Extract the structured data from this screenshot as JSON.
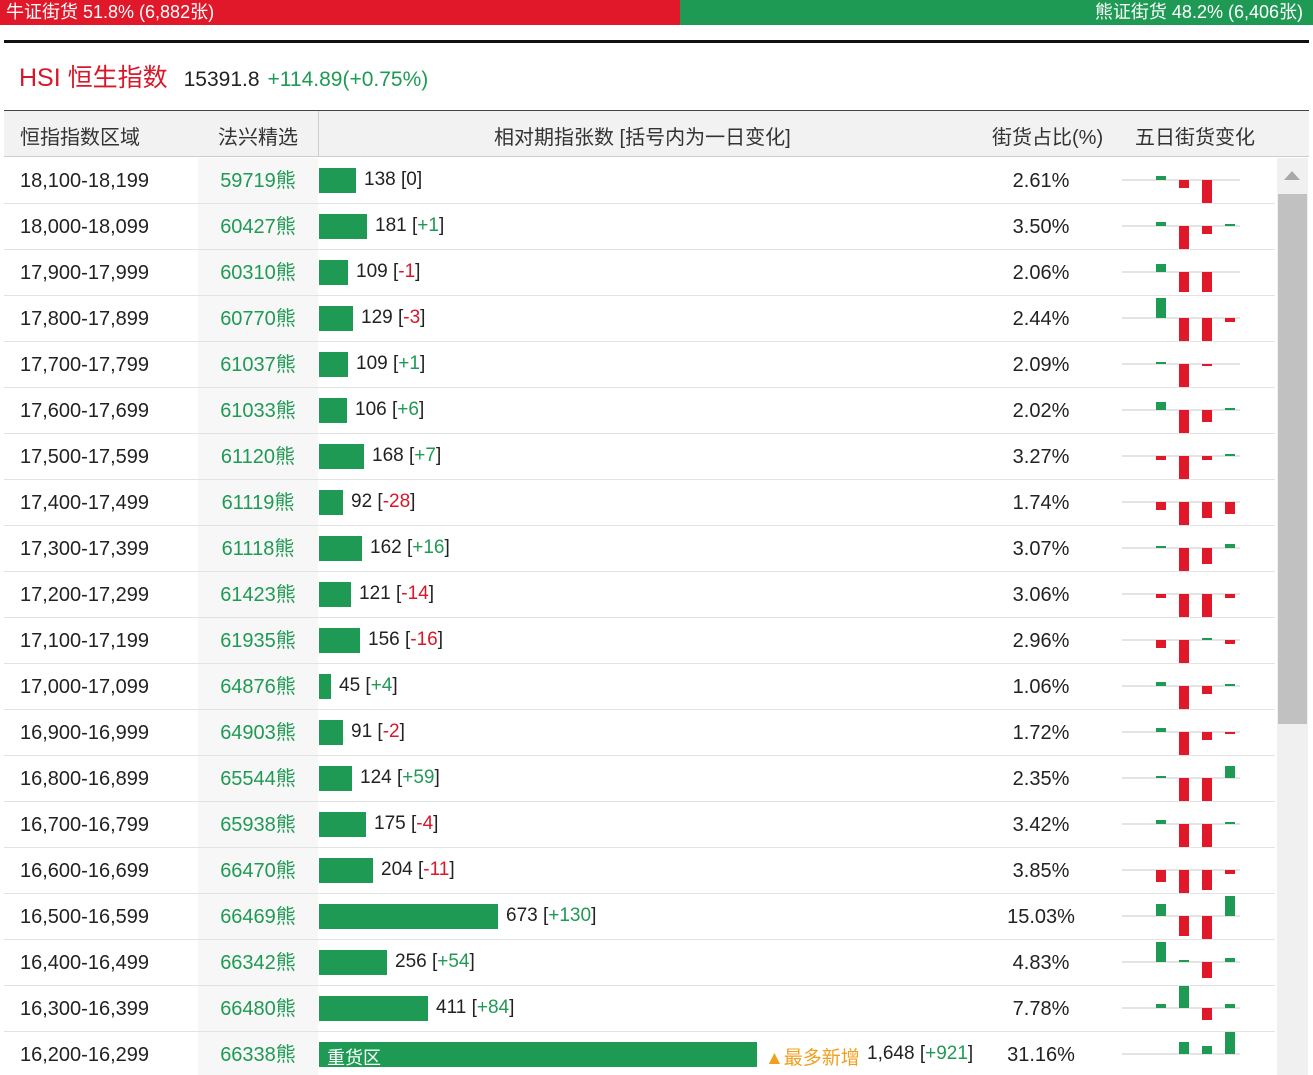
{
  "colors": {
    "bull": "#e0182a",
    "bear": "#1f9a54",
    "accent": "#d7182a",
    "badge": "#f0a020"
  },
  "ratio": {
    "bull_label": "牛证街货 51.8% (6,882张)",
    "bear_label": "熊证街货 48.2% (6,406张)",
    "bull_fraction": 0.518,
    "bear_fraction": 0.482
  },
  "index": {
    "name": "HSI 恒生指数",
    "price": "15391.8",
    "change": "+114.89(+0.75%)"
  },
  "columns": {
    "range": "恒指指数区域",
    "pick": "法兴精选",
    "count": "相对期指张数 [括号内为一日变化]",
    "share": "街货占比(%)",
    "trend": "五日街货变化"
  },
  "rows": [
    {
      "range": "18,100-18,199",
      "code": "59719熊",
      "count": "138",
      "delta": "0",
      "share": "2.61%",
      "spark": [
        1,
        -2,
        -7,
        0,
        0
      ]
    },
    {
      "range": "18,000-18,099",
      "code": "60427熊",
      "count": "181",
      "delta": "+1",
      "share": "3.50%",
      "spark": [
        1,
        -7,
        -2,
        0.5,
        0
      ]
    },
    {
      "range": "17,900-17,999",
      "code": "60310熊",
      "count": "109",
      "delta": "-1",
      "share": "2.06%",
      "spark": [
        2,
        -5,
        -5,
        0,
        0
      ]
    },
    {
      "range": "17,800-17,899",
      "code": "60770熊",
      "count": "129",
      "delta": "-3",
      "share": "2.44%",
      "spark": [
        5,
        -6,
        -6,
        -1,
        0
      ]
    },
    {
      "range": "17,700-17,799",
      "code": "61037熊",
      "count": "109",
      "delta": "+1",
      "share": "2.09%",
      "spark": [
        0.5,
        -6,
        -0.5,
        0,
        0
      ]
    },
    {
      "range": "17,600-17,699",
      "code": "61033熊",
      "count": "106",
      "delta": "+6",
      "share": "2.02%",
      "spark": [
        2,
        -6,
        -3,
        0.5,
        0
      ]
    },
    {
      "range": "17,500-17,599",
      "code": "61120熊",
      "count": "168",
      "delta": "+7",
      "share": "3.27%",
      "spark": [
        -1,
        -6,
        -1,
        0.3,
        0
      ]
    },
    {
      "range": "17,400-17,499",
      "code": "61119熊",
      "count": "92",
      "delta": "-28",
      "share": "1.74%",
      "spark": [
        -2,
        -6,
        -4,
        -3,
        0
      ]
    },
    {
      "range": "17,300-17,399",
      "code": "61118熊",
      "count": "162",
      "delta": "+16",
      "share": "3.07%",
      "spark": [
        0.5,
        -6,
        -4,
        1,
        0
      ]
    },
    {
      "range": "17,200-17,299",
      "code": "61423熊",
      "count": "121",
      "delta": "-14",
      "share": "3.06%",
      "spark": [
        -1,
        -6,
        -6,
        -1,
        0
      ]
    },
    {
      "range": "17,100-17,199",
      "code": "61935熊",
      "count": "156",
      "delta": "-16",
      "share": "2.96%",
      "spark": [
        -2,
        -6,
        0.5,
        -1,
        0
      ]
    },
    {
      "range": "17,000-17,099",
      "code": "64876熊",
      "count": "45",
      "delta": "+4",
      "share": "1.06%",
      "spark": [
        1,
        -6,
        -2,
        0.3,
        0
      ]
    },
    {
      "range": "16,900-16,999",
      "code": "64903熊",
      "count": "91",
      "delta": "-2",
      "share": "1.72%",
      "spark": [
        1,
        -6,
        -2,
        -0.5,
        0
      ]
    },
    {
      "range": "16,800-16,899",
      "code": "65544熊",
      "count": "124",
      "delta": "+59",
      "share": "2.35%",
      "spark": [
        0.5,
        -6,
        -6,
        3,
        0
      ]
    },
    {
      "range": "16,700-16,799",
      "code": "65938熊",
      "count": "175",
      "delta": "-4",
      "share": "3.42%",
      "spark": [
        1,
        -6,
        -6,
        0.3,
        0
      ]
    },
    {
      "range": "16,600-16,699",
      "code": "66470熊",
      "count": "204",
      "delta": "-11",
      "share": "3.85%",
      "spark": [
        -3,
        -6,
        -5,
        -1,
        0
      ]
    },
    {
      "range": "16,500-16,599",
      "code": "66469熊",
      "count": "673",
      "delta": "+130",
      "share": "15.03%",
      "spark": [
        3,
        -5,
        -6,
        5,
        0
      ]
    },
    {
      "range": "16,400-16,499",
      "code": "66342熊",
      "count": "256",
      "delta": "+54",
      "share": "4.83%",
      "spark": [
        5,
        0.5,
        -4,
        1,
        0
      ]
    },
    {
      "range": "16,300-16,399",
      "code": "66480熊",
      "count": "411",
      "delta": "+84",
      "share": "7.78%",
      "spark": [
        1,
        6,
        -3,
        1,
        0
      ]
    },
    {
      "range": "16,200-16,299",
      "code": "66338熊",
      "count": "1,648",
      "delta": "+921",
      "share": "31.16%",
      "spark": [
        0,
        3,
        2,
        6,
        0
      ],
      "bar_label": "重货区",
      "badge": "▲最多新增"
    }
  ]
}
